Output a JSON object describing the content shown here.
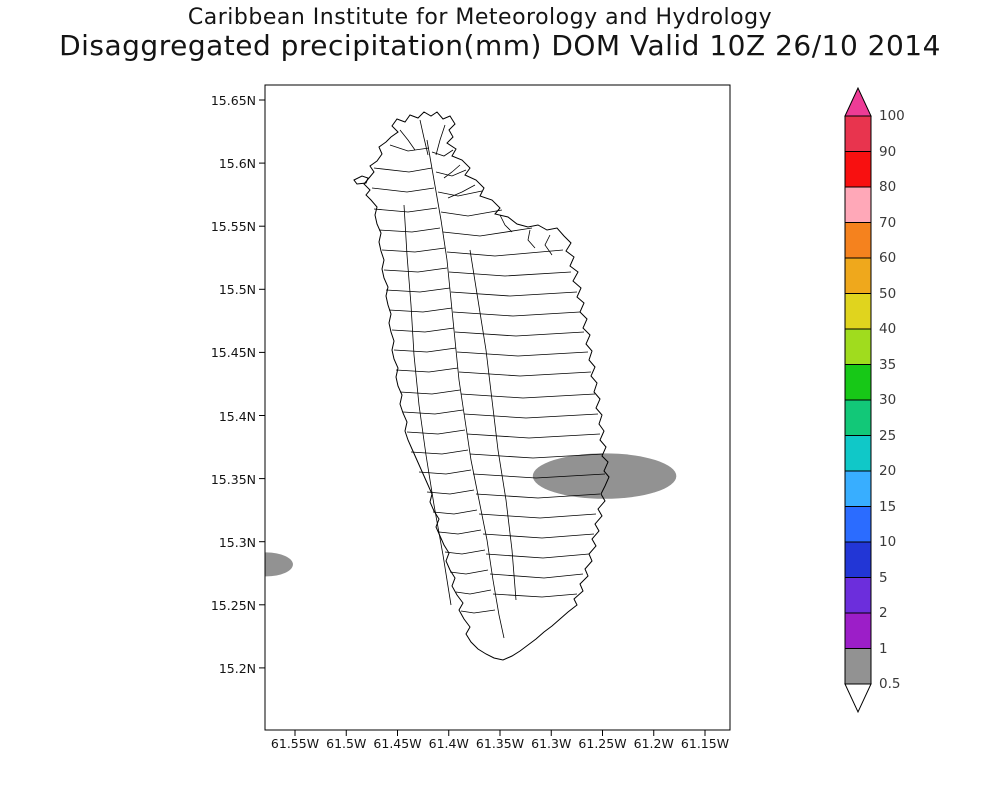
{
  "header": {
    "line1": "Caribbean Institute for Meteorology and Hydrology",
    "line2": "Disaggregated precipitation(mm) DOM Valid 10Z 26/10 2014"
  },
  "chart_data": {
    "type": "heatmap",
    "title": "Disaggregated precipitation(mm) DOM Valid 10Z 26/10 2014",
    "subtitle": "Caribbean Institute for Meteorology and Hydrology",
    "lat_ticks": [
      "15.65N",
      "15.6N",
      "15.55N",
      "15.5N",
      "15.45N",
      "15.4N",
      "15.35N",
      "15.3N",
      "15.25N",
      "15.2N"
    ],
    "lon_ticks": [
      "61.55W",
      "61.5W",
      "61.45W",
      "61.4W",
      "61.35W",
      "61.3W",
      "61.25W",
      "61.2W",
      "61.15W"
    ],
    "legend_levels_mm": [
      "0.5",
      "1",
      "2",
      "5",
      "10",
      "15",
      "20",
      "25",
      "30",
      "35",
      "40",
      "50",
      "60",
      "70",
      "80",
      "90",
      "100"
    ],
    "shaded_regions": [
      {
        "level_mm": "0.5-1",
        "color": "#929292",
        "center_lat": 15.352,
        "center_lon_w": 61.248,
        "radius_lat_deg": 0.018,
        "radius_lon_deg": 0.07
      },
      {
        "level_mm": "0.5-1",
        "color": "#929292",
        "center_lat": 15.282,
        "center_lon_w": 61.578,
        "radius_lat_deg": 0.0095,
        "radius_lon_deg": 0.026
      }
    ]
  },
  "colorbar": {
    "tick_labels": [
      "100",
      "90",
      "80",
      "70",
      "60",
      "50",
      "40",
      "35",
      "30",
      "25",
      "20",
      "15",
      "10",
      "5",
      "2",
      "1",
      "0.5"
    ],
    "band_colors_top_to_bottom": [
      "#E8344E",
      "#F81010",
      "#FFA8B8",
      "#F5821E",
      "#EFA81C",
      "#E0D41E",
      "#A0DC1E",
      "#17C817",
      "#12C878",
      "#10C8C8",
      "#38AEFF",
      "#2B6CFF",
      "#2236D6",
      "#6C2EDC",
      "#9C1EC8",
      "#929292"
    ],
    "arrow_top_color": "#EE3C96",
    "arrow_bottom_color": "#FFFFFF"
  }
}
